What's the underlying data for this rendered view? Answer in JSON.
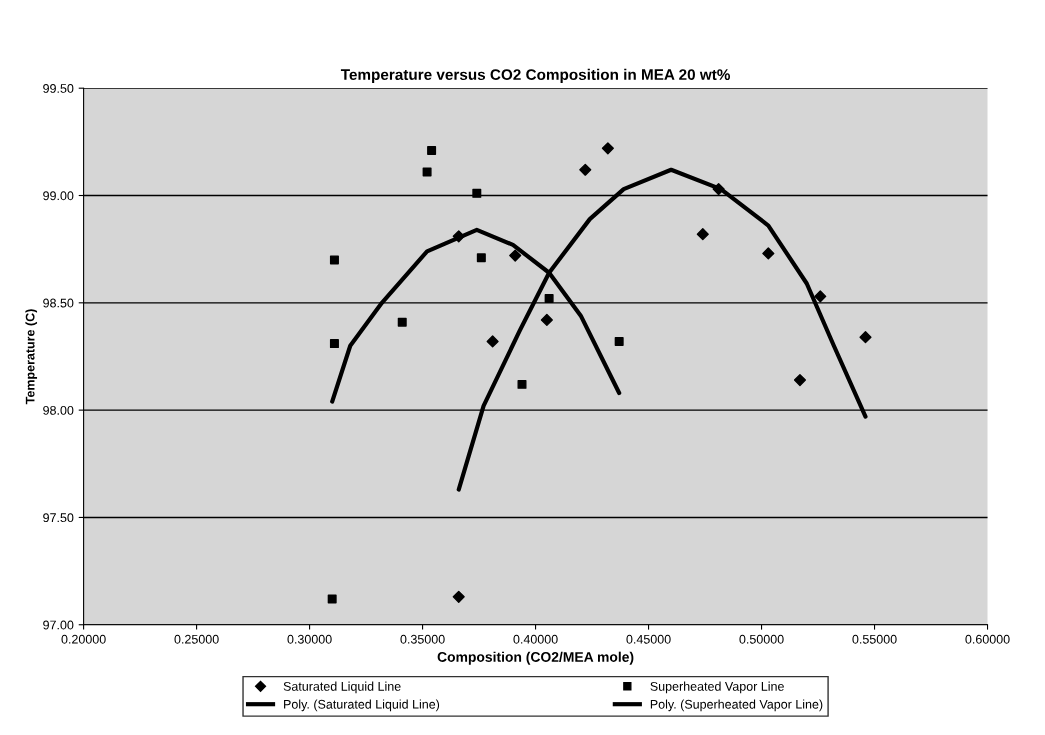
{
  "chart_data": {
    "type": "scatter",
    "title": "Temperature versus CO2 Composition in MEA 20 wt%",
    "xlabel": "Composition (CO2/MEA mole)",
    "ylabel": "Temperature (C)",
    "xlim": [
      0.2,
      0.6
    ],
    "xticks": [
      {
        "value": 0.2,
        "label": "0.20000"
      },
      {
        "value": 0.25,
        "label": "0.25000"
      },
      {
        "value": 0.3,
        "label": "0.30000"
      },
      {
        "value": 0.35,
        "label": "0.35000"
      },
      {
        "value": 0.4,
        "label": "0.40000"
      },
      {
        "value": 0.45,
        "label": "0.45000"
      },
      {
        "value": 0.5,
        "label": "0.50000"
      },
      {
        "value": 0.55,
        "label": "0.55000"
      },
      {
        "value": 0.6,
        "label": "0.60000"
      }
    ],
    "ylim": [
      97.0,
      99.5
    ],
    "yticks": [
      {
        "value": 97.0,
        "label": "97.00"
      },
      {
        "value": 97.5,
        "label": "97.50"
      },
      {
        "value": 98.0,
        "label": "98.00"
      },
      {
        "value": 98.5,
        "label": "98.50"
      },
      {
        "value": 99.0,
        "label": "99.00"
      },
      {
        "value": 99.5,
        "label": "99.50"
      }
    ],
    "grid": "y",
    "legend": "bottom",
    "series": [
      {
        "name": "Saturated Liquid Line",
        "marker": "diamond",
        "color": "#000000",
        "x": [
          0.366,
          0.391,
          0.381,
          0.366,
          0.432,
          0.422,
          0.481,
          0.474,
          0.503,
          0.405,
          0.526,
          0.546,
          0.517
        ],
        "values": [
          98.81,
          98.72,
          98.32,
          97.13,
          99.22,
          99.12,
          99.03,
          98.82,
          98.73,
          98.42,
          98.53,
          98.34,
          98.14
        ]
      },
      {
        "name": "Poly. (Saturated Liquid Line)",
        "type": "line",
        "marker": "none",
        "color": "#000000",
        "x": [
          0.366,
          0.377,
          0.393,
          0.406,
          0.424,
          0.439,
          0.46,
          0.482,
          0.503,
          0.52,
          0.532,
          0.546
        ],
        "values": [
          97.63,
          98.02,
          98.37,
          98.64,
          98.89,
          99.03,
          99.12,
          99.03,
          98.86,
          98.59,
          98.3,
          97.97
        ]
      },
      {
        "name": "Superheated Vapor Line",
        "marker": "square",
        "color": "#000000",
        "x": [
          0.354,
          0.352,
          0.374,
          0.311,
          0.376,
          0.341,
          0.311,
          0.394,
          0.31,
          0.406,
          0.437
        ],
        "values": [
          99.21,
          99.11,
          99.01,
          98.7,
          98.71,
          98.41,
          98.31,
          98.12,
          97.12,
          98.52,
          98.32
        ]
      },
      {
        "name": "Poly. (Superheated Vapor Line)",
        "type": "line",
        "marker": "none",
        "color": "#000000",
        "x": [
          0.31,
          0.318,
          0.332,
          0.352,
          0.374,
          0.39,
          0.406,
          0.42,
          0.437
        ],
        "values": [
          98.04,
          98.3,
          98.5,
          98.74,
          98.84,
          98.77,
          98.64,
          98.44,
          98.08
        ]
      }
    ]
  }
}
